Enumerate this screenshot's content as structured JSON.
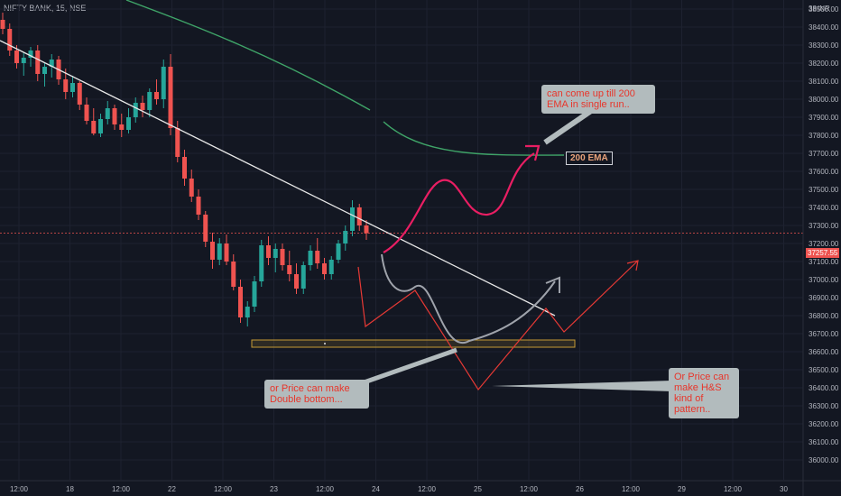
{
  "header": {
    "symbol": "NIFTY BANK, 15, NSE",
    "currency": "INR"
  },
  "colors": {
    "background": "#131722",
    "up": "#26a69a",
    "down": "#ef5350",
    "ema": "#3fa468",
    "trendline": "#e8e8e8",
    "pink_path": "#e91e63",
    "red_path": "#e53935",
    "grey_path": "#9fa3ab",
    "support_box": "#c59a34"
  },
  "annotations": {
    "ema_callout": "can come up till 200\nEMA in single run..",
    "ema_label": "200 EMA",
    "double_bottom": "or Price can make\nDouble bottom...",
    "hs_pattern": "Or Price can\nmake H&S\nkind of\npattern.."
  },
  "chart_data": {
    "type": "candlestick",
    "title": "NIFTY BANK, 15, NSE",
    "current_price": "37257.55",
    "y_ticks": [
      36000,
      36100,
      36200,
      36300,
      36400,
      36500,
      36600,
      36700,
      36800,
      36900,
      37000,
      37100,
      37200,
      37300,
      37400,
      37500,
      37600,
      37700,
      37800,
      37900,
      38000,
      38100,
      38200,
      38300,
      38400,
      38500
    ],
    "y_top_label": "38",
    "x_ticks": [
      "12:00",
      "18",
      "12:00",
      "22",
      "12:00",
      "23",
      "12:00",
      "24",
      "12:00",
      "25",
      "12:00",
      "26",
      "12:00",
      "29",
      "12:00",
      "30"
    ],
    "ylim": [
      35950,
      38640
    ],
    "candles": [
      [
        38440,
        38480,
        38360,
        38390
      ],
      [
        38390,
        38420,
        38240,
        38270
      ],
      [
        38270,
        38300,
        38170,
        38200
      ],
      [
        38200,
        38260,
        38130,
        38230
      ],
      [
        38230,
        38290,
        38180,
        38270
      ],
      [
        38270,
        38300,
        38100,
        38140
      ],
      [
        38140,
        38200,
        38070,
        38180
      ],
      [
        38180,
        38250,
        38120,
        38220
      ],
      [
        38220,
        38240,
        38080,
        38110
      ],
      [
        38110,
        38170,
        38000,
        38040
      ],
      [
        38040,
        38130,
        38010,
        38090
      ],
      [
        38090,
        38100,
        37940,
        37970
      ],
      [
        37970,
        38010,
        37860,
        37880
      ],
      [
        37880,
        37950,
        37800,
        37810
      ],
      [
        37810,
        37920,
        37790,
        37890
      ],
      [
        37890,
        37990,
        37860,
        37950
      ],
      [
        37950,
        37970,
        37830,
        37860
      ],
      [
        37860,
        37920,
        37790,
        37830
      ],
      [
        37830,
        37950,
        37810,
        37900
      ],
      [
        37900,
        38010,
        37870,
        37980
      ],
      [
        37980,
        38020,
        37900,
        37940
      ],
      [
        37940,
        38060,
        37900,
        38040
      ],
      [
        38040,
        38110,
        37970,
        38000
      ],
      [
        38000,
        38220,
        37950,
        38180
      ],
      [
        38180,
        38250,
        37800,
        37840
      ],
      [
        37840,
        37880,
        37650,
        37680
      ],
      [
        37680,
        37720,
        37520,
        37560
      ],
      [
        37560,
        37610,
        37430,
        37460
      ],
      [
        37460,
        37500,
        37330,
        37360
      ],
      [
        37360,
        37380,
        37180,
        37210
      ],
      [
        37210,
        37260,
        37060,
        37110
      ],
      [
        37110,
        37230,
        37080,
        37200
      ],
      [
        37200,
        37250,
        37080,
        37100
      ],
      [
        37100,
        37140,
        36940,
        36960
      ],
      [
        36960,
        37000,
        36760,
        36790
      ],
      [
        36790,
        36880,
        36740,
        36850
      ],
      [
        36850,
        37020,
        36820,
        36990
      ],
      [
        36990,
        37220,
        36960,
        37190
      ],
      [
        37190,
        37240,
        37080,
        37120
      ],
      [
        37120,
        37200,
        37040,
        37170
      ],
      [
        37170,
        37200,
        37050,
        37080
      ],
      [
        37080,
        37160,
        36990,
        37030
      ],
      [
        37030,
        37090,
        36920,
        36950
      ],
      [
        36950,
        37100,
        36920,
        37080
      ],
      [
        37080,
        37190,
        37050,
        37160
      ],
      [
        37160,
        37230,
        37060,
        37090
      ],
      [
        37090,
        37120,
        37000,
        37030
      ],
      [
        37030,
        37130,
        37000,
        37110
      ],
      [
        37110,
        37220,
        37090,
        37200
      ],
      [
        37200,
        37300,
        37160,
        37270
      ],
      [
        37270,
        37440,
        37240,
        37400
      ],
      [
        37400,
        37420,
        37270,
        37300
      ],
      [
        37300,
        37330,
        37220,
        37257
      ]
    ]
  }
}
